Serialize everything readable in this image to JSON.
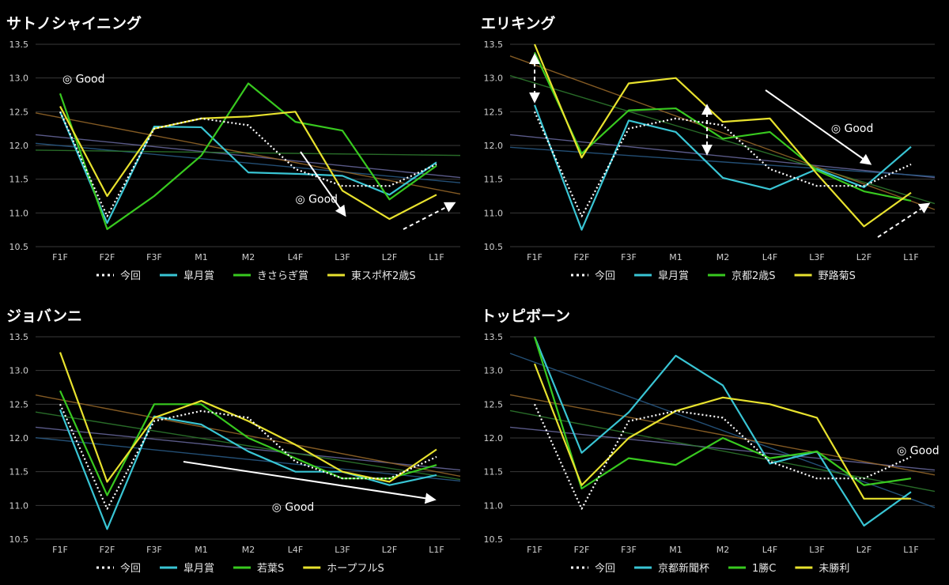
{
  "chart_data": [
    {
      "type": "line",
      "title": "サトノシャイニング",
      "categories": [
        "F1F",
        "F2F",
        "F3F",
        "M1",
        "M2",
        "L4F",
        "L3F",
        "L2F",
        "L1F"
      ],
      "ylim": [
        10.5,
        13.5
      ],
      "yticks": [
        "10.5",
        "11.0",
        "11.5",
        "12.0",
        "12.5",
        "13.0",
        "13.5"
      ],
      "grid": true,
      "legend": "bottom",
      "series": [
        {
          "name": "今回",
          "color": "#ffffff",
          "dashed": true,
          "values": [
            12.5,
            10.95,
            12.25,
            12.4,
            12.3,
            11.65,
            11.4,
            11.4,
            11.72
          ]
        },
        {
          "name": "皐月賞",
          "color": "#39c5d4",
          "values": [
            12.5,
            10.85,
            12.28,
            12.27,
            11.6,
            11.58,
            11.55,
            11.27,
            11.75
          ]
        },
        {
          "name": "きさらぎ賞",
          "color": "#38c91f",
          "values": [
            12.77,
            10.76,
            11.25,
            11.85,
            12.92,
            12.35,
            12.22,
            11.2,
            11.7
          ]
        },
        {
          "name": "東スポ杯2歳S",
          "color": "#e8e22e",
          "values": [
            12.58,
            11.25,
            12.25,
            12.4,
            12.43,
            12.5,
            11.33,
            10.91,
            11.27
          ]
        }
      ],
      "annotations": [
        {
          "text": "◎ Good",
          "x": 0.05,
          "y": 12.99
        },
        {
          "text": "◎ Good",
          "x": 5.0,
          "y": 11.21
        }
      ]
    },
    {
      "type": "line",
      "title": "エリキング",
      "categories": [
        "F1F",
        "F2F",
        "F3F",
        "M1",
        "M2",
        "L4F",
        "L3F",
        "L2F",
        "L1F"
      ],
      "ylim": [
        10.5,
        13.5
      ],
      "yticks": [
        "10.5",
        "11.0",
        "11.5",
        "12.0",
        "12.5",
        "13.0",
        "13.5"
      ],
      "grid": true,
      "legend": "bottom",
      "series": [
        {
          "name": "今回",
          "color": "#ffffff",
          "dashed": true,
          "values": [
            12.5,
            10.95,
            12.25,
            12.4,
            12.3,
            11.65,
            11.4,
            11.4,
            11.72
          ]
        },
        {
          "name": "皐月賞",
          "color": "#39c5d4",
          "values": [
            12.6,
            10.75,
            12.37,
            12.2,
            11.52,
            11.35,
            11.65,
            11.38,
            11.98
          ]
        },
        {
          "name": "京都2歳S",
          "color": "#38c91f",
          "values": [
            13.38,
            11.88,
            12.52,
            12.55,
            12.1,
            12.2,
            11.63,
            11.32,
            11.18
          ]
        },
        {
          "name": "野路菊S",
          "color": "#e8e22e",
          "values": [
            13.5,
            11.82,
            12.92,
            13.0,
            12.35,
            12.4,
            11.58,
            10.8,
            11.3
          ]
        }
      ],
      "annotations": [
        {
          "text": "◎ Good",
          "x": 6.3,
          "y": 12.26
        }
      ]
    },
    {
      "type": "line",
      "title": "ジョバンニ",
      "categories": [
        "F1F",
        "F2F",
        "F3F",
        "M1",
        "M2",
        "L4F",
        "L3F",
        "L2F",
        "L1F"
      ],
      "ylim": [
        10.5,
        13.5
      ],
      "yticks": [
        "10.5",
        "11.0",
        "11.5",
        "12.0",
        "12.5",
        "13.0",
        "13.5"
      ],
      "grid": true,
      "legend": "bottom",
      "series": [
        {
          "name": "今回",
          "color": "#ffffff",
          "dashed": true,
          "values": [
            12.5,
            10.95,
            12.25,
            12.4,
            12.3,
            11.65,
            11.4,
            11.4,
            11.72
          ]
        },
        {
          "name": "皐月賞",
          "color": "#39c5d4",
          "values": [
            12.42,
            10.65,
            12.32,
            12.2,
            11.8,
            11.5,
            11.5,
            11.3,
            11.45
          ]
        },
        {
          "name": "若葉S",
          "color": "#38c91f",
          "values": [
            12.7,
            11.15,
            12.5,
            12.5,
            12.0,
            11.7,
            11.4,
            11.4,
            11.6
          ]
        },
        {
          "name": "ホープフルS",
          "color": "#e8e22e",
          "values": [
            13.27,
            11.35,
            12.3,
            12.55,
            12.25,
            11.9,
            11.5,
            11.35,
            11.83
          ]
        }
      ],
      "annotations": [
        {
          "text": "◎ Good",
          "x": 4.5,
          "y": 10.98
        }
      ]
    },
    {
      "type": "line",
      "title": "トッピボーン",
      "categories": [
        "F1F",
        "F2F",
        "F3F",
        "M1",
        "M2",
        "L4F",
        "L3F",
        "L2F",
        "L1F"
      ],
      "ylim": [
        10.5,
        13.5
      ],
      "yticks": [
        "10.5",
        "11.0",
        "11.5",
        "12.0",
        "12.5",
        "13.0",
        "13.5"
      ],
      "grid": true,
      "legend": "bottom",
      "series": [
        {
          "name": "今回",
          "color": "#ffffff",
          "dashed": true,
          "values": [
            12.5,
            10.95,
            12.25,
            12.4,
            12.3,
            11.65,
            11.4,
            11.4,
            11.72
          ]
        },
        {
          "name": "京都新聞杯",
          "color": "#39c5d4",
          "values": [
            13.5,
            11.78,
            12.38,
            13.22,
            12.78,
            11.62,
            11.8,
            10.7,
            11.2
          ]
        },
        {
          "name": "1勝C",
          "color": "#38c91f",
          "values": [
            13.5,
            11.25,
            11.7,
            11.6,
            12.0,
            11.7,
            11.8,
            11.3,
            11.4
          ]
        },
        {
          "name": "未勝利",
          "color": "#e8e22e",
          "values": [
            13.1,
            11.3,
            12.0,
            12.4,
            12.6,
            12.5,
            12.3,
            11.1,
            11.1
          ]
        }
      ],
      "annotations": [
        {
          "text": "◎ Good",
          "x": 7.7,
          "y": 11.82
        }
      ]
    }
  ]
}
